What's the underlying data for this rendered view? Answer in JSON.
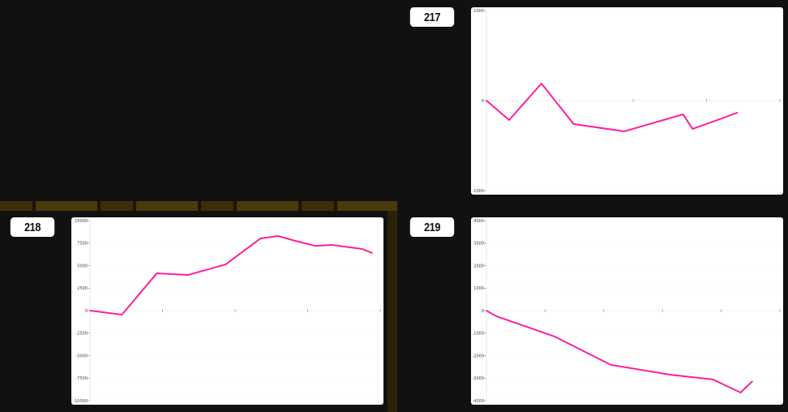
{
  "line_color": "#ff1f9e",
  "labels": [
    "217",
    "218",
    "219"
  ],
  "chart_data": [
    {
      "type": "line",
      "title": "217",
      "xlim": [
        0,
        4
      ],
      "ylim": [
        -1000,
        1000
      ],
      "yticks": [
        1000,
        0,
        -1000
      ],
      "x": [
        0,
        0.31,
        0.75,
        1.19,
        1.88,
        2.68,
        2.81,
        3.12,
        3.42
      ],
      "values": [
        0,
        -216,
        189,
        -261,
        -342,
        -153,
        -315,
        -225,
        -135
      ]
    },
    {
      "type": "line",
      "title": "218",
      "xlim": [
        0,
        4
      ],
      "ylim": [
        -10000,
        10000
      ],
      "yticks": [
        10000,
        7500,
        5000,
        2500,
        0,
        -2500,
        -5000,
        -7500,
        -10000
      ],
      "x": [
        0,
        0.44,
        0.92,
        1.35,
        1.87,
        2.35,
        2.59,
        2.83,
        3.1,
        3.34,
        3.75,
        3.89
      ],
      "values": [
        0,
        -450,
        4140,
        3960,
        5130,
        8020,
        8290,
        7750,
        7200,
        7300,
        6850,
        6400
      ]
    },
    {
      "type": "line",
      "title": "219",
      "xlim": [
        0,
        5
      ],
      "ylim": [
        -4000,
        4000
      ],
      "yticks": [
        4000,
        3000,
        2000,
        1000,
        0,
        -1000,
        -2000,
        -3000,
        -4000
      ],
      "x": [
        0,
        0.17,
        1.16,
        2.12,
        3.14,
        3.86,
        4.33,
        4.53
      ],
      "values": [
        0,
        -250,
        -1150,
        -2410,
        -2850,
        -3060,
        -3640,
        -3140
      ]
    }
  ]
}
